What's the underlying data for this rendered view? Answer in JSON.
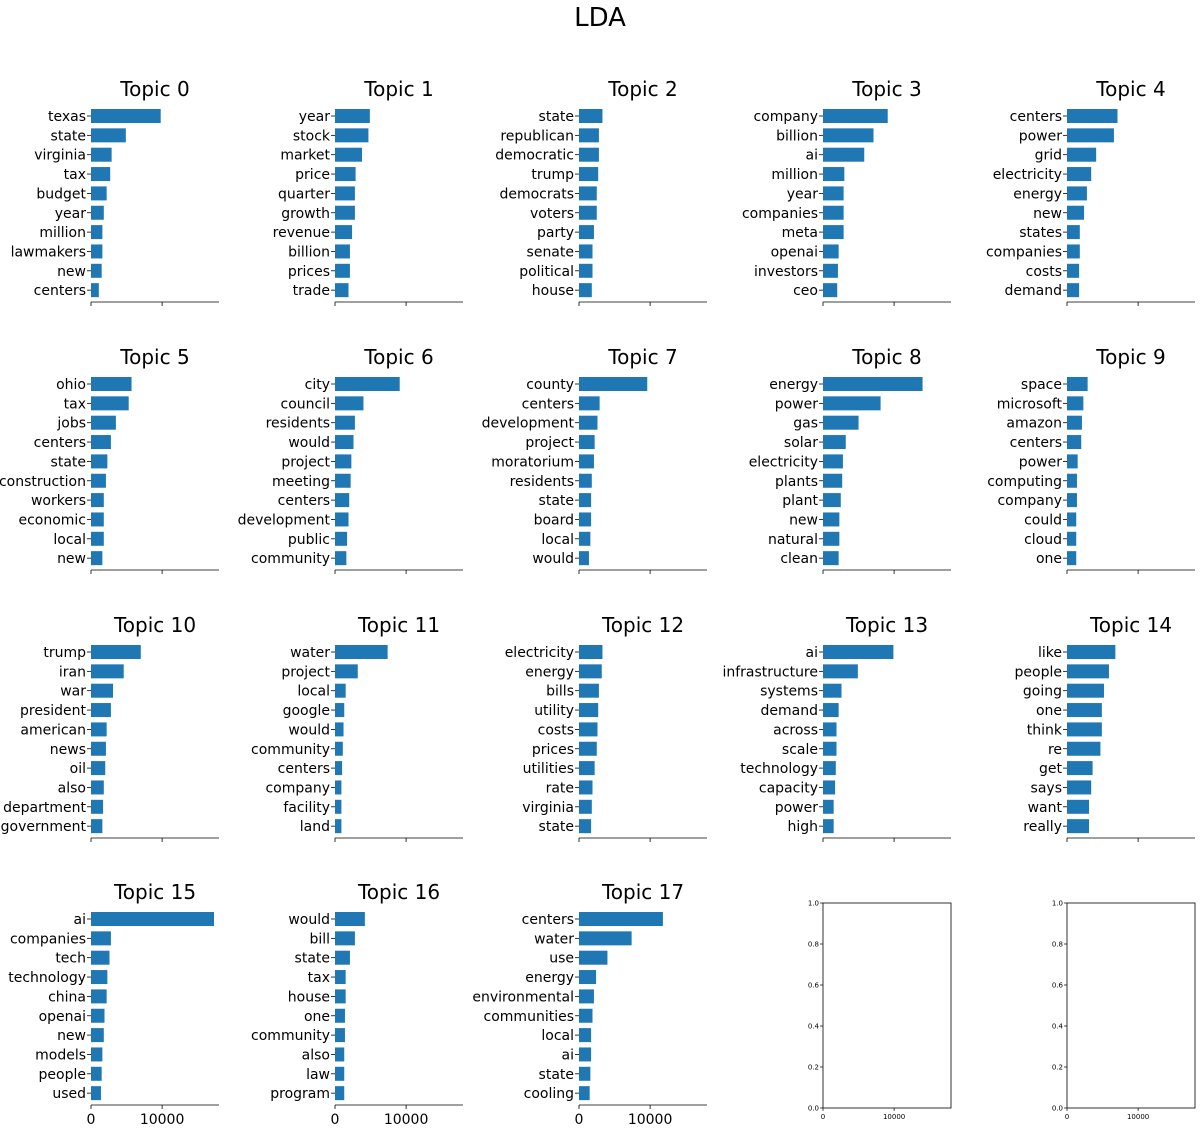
{
  "chart_data": {
    "type": "bar",
    "orientation": "horizontal",
    "title": "LDA",
    "bar_color": "#1f77b4",
    "xlim": [
      0,
      18000
    ],
    "grid": false,
    "grid_layout": {
      "rows": 4,
      "cols": 5
    },
    "x_tick_labels": [
      "0",
      "10000"
    ],
    "empty_panel_y_ticks": [
      "0.0",
      "0.2",
      "0.4",
      "0.6",
      "0.8",
      "1.0"
    ],
    "empty_panel_x_ticks": [
      "0",
      "10000"
    ],
    "panels": [
      {
        "title": "Topic 0",
        "categories": [
          "texas",
          "state",
          "virginia",
          "tax",
          "budget",
          "year",
          "million",
          "lawmakers",
          "new",
          "centers"
        ],
        "values": [
          9800,
          4900,
          2900,
          2700,
          2200,
          1800,
          1600,
          1600,
          1500,
          1100
        ]
      },
      {
        "title": "Topic 1",
        "categories": [
          "year",
          "stock",
          "market",
          "price",
          "quarter",
          "growth",
          "revenue",
          "billion",
          "prices",
          "trade"
        ],
        "values": [
          4900,
          4700,
          3800,
          2900,
          2800,
          2800,
          2400,
          2100,
          2100,
          1900
        ]
      },
      {
        "title": "Topic 2",
        "categories": [
          "state",
          "republican",
          "democratic",
          "trump",
          "democrats",
          "voters",
          "party",
          "senate",
          "political",
          "house"
        ],
        "values": [
          3300,
          2800,
          2800,
          2700,
          2500,
          2500,
          2100,
          1900,
          1900,
          1800
        ]
      },
      {
        "title": "Topic 3",
        "categories": [
          "company",
          "billion",
          "ai",
          "million",
          "year",
          "companies",
          "meta",
          "openai",
          "investors",
          "ceo"
        ],
        "values": [
          9100,
          7100,
          5800,
          3000,
          2900,
          2900,
          2900,
          2200,
          2100,
          2000
        ]
      },
      {
        "title": "Topic 4",
        "categories": [
          "centers",
          "power",
          "grid",
          "electricity",
          "energy",
          "new",
          "states",
          "companies",
          "costs",
          "demand"
        ],
        "values": [
          7100,
          6600,
          4100,
          3400,
          2800,
          2400,
          1800,
          1800,
          1700,
          1700
        ]
      },
      {
        "title": "Topic 5",
        "categories": [
          "ohio",
          "tax",
          "jobs",
          "centers",
          "state",
          "construction",
          "workers",
          "economic",
          "local",
          "new"
        ],
        "values": [
          5700,
          5300,
          3500,
          2800,
          2300,
          2100,
          1800,
          1800,
          1800,
          1600
        ]
      },
      {
        "title": "Topic 6",
        "categories": [
          "city",
          "council",
          "residents",
          "would",
          "project",
          "meeting",
          "centers",
          "development",
          "public",
          "community"
        ],
        "values": [
          9100,
          4000,
          2800,
          2600,
          2300,
          2200,
          2000,
          1900,
          1700,
          1600
        ]
      },
      {
        "title": "Topic 7",
        "categories": [
          "county",
          "centers",
          "development",
          "project",
          "moratorium",
          "residents",
          "state",
          "board",
          "local",
          "would"
        ],
        "values": [
          9600,
          2900,
          2600,
          2200,
          2100,
          1800,
          1700,
          1700,
          1600,
          1400
        ]
      },
      {
        "title": "Topic 8",
        "categories": [
          "energy",
          "power",
          "gas",
          "solar",
          "electricity",
          "plants",
          "plant",
          "new",
          "natural",
          "clean"
        ],
        "values": [
          14000,
          8100,
          5000,
          3200,
          2800,
          2700,
          2500,
          2300,
          2300,
          2200
        ]
      },
      {
        "title": "Topic 9",
        "categories": [
          "space",
          "microsoft",
          "amazon",
          "centers",
          "power",
          "computing",
          "company",
          "could",
          "cloud",
          "one"
        ],
        "values": [
          2900,
          2300,
          2100,
          2000,
          1500,
          1400,
          1400,
          1300,
          1300,
          1300
        ]
      },
      {
        "title": "Topic 10",
        "categories": [
          "trump",
          "iran",
          "war",
          "president",
          "american",
          "news",
          "oil",
          "also",
          "department",
          "government"
        ],
        "values": [
          7000,
          4600,
          3100,
          2800,
          2200,
          2100,
          2000,
          1800,
          1700,
          1600
        ]
      },
      {
        "title": "Topic 11",
        "categories": [
          "water",
          "project",
          "local",
          "google",
          "would",
          "community",
          "centers",
          "company",
          "facility",
          "land"
        ],
        "values": [
          7400,
          3200,
          1500,
          1300,
          1200,
          1100,
          1000,
          900,
          900,
          900
        ]
      },
      {
        "title": "Topic 12",
        "categories": [
          "electricity",
          "energy",
          "bills",
          "utility",
          "costs",
          "prices",
          "utilities",
          "rate",
          "virginia",
          "state"
        ],
        "values": [
          3300,
          3200,
          2800,
          2700,
          2600,
          2500,
          2200,
          1900,
          1800,
          1700
        ]
      },
      {
        "title": "Topic 13",
        "categories": [
          "ai",
          "infrastructure",
          "systems",
          "demand",
          "across",
          "scale",
          "technology",
          "capacity",
          "power",
          "high"
        ],
        "values": [
          9900,
          4900,
          2600,
          2200,
          1900,
          1900,
          1800,
          1700,
          1500,
          1500
        ]
      },
      {
        "title": "Topic 14",
        "categories": [
          "like",
          "people",
          "going",
          "one",
          "think",
          "re",
          "get",
          "says",
          "want",
          "really"
        ],
        "values": [
          6800,
          5900,
          5200,
          4900,
          4900,
          4700,
          3600,
          3400,
          3100,
          3100
        ]
      },
      {
        "title": "Topic 15",
        "categories": [
          "ai",
          "companies",
          "tech",
          "technology",
          "china",
          "openai",
          "new",
          "models",
          "people",
          "used"
        ],
        "values": [
          17300,
          2800,
          2600,
          2300,
          2200,
          1900,
          1800,
          1600,
          1500,
          1400
        ]
      },
      {
        "title": "Topic 16",
        "categories": [
          "would",
          "bill",
          "state",
          "tax",
          "house",
          "one",
          "community",
          "also",
          "law",
          "program"
        ],
        "values": [
          4200,
          2800,
          2100,
          1500,
          1500,
          1400,
          1400,
          1300,
          1300,
          1300
        ]
      },
      {
        "title": "Topic 17",
        "categories": [
          "centers",
          "water",
          "use",
          "energy",
          "environmental",
          "communities",
          "local",
          "ai",
          "state",
          "cooling"
        ],
        "values": [
          11800,
          7400,
          4000,
          2400,
          2100,
          1900,
          1700,
          1700,
          1600,
          1500
        ]
      }
    ]
  }
}
